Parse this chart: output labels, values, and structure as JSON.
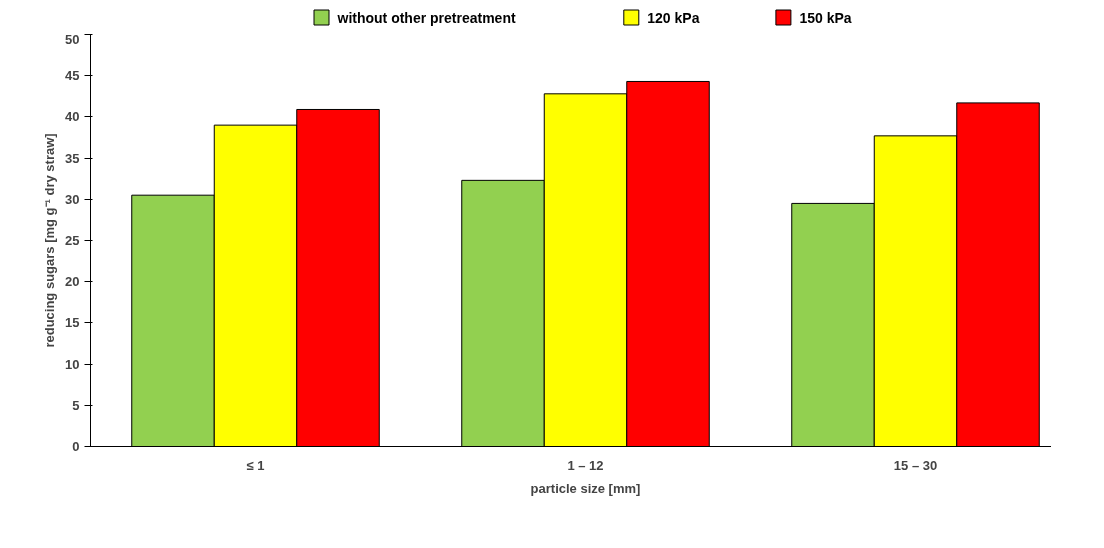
{
  "chart_data": {
    "type": "bar",
    "xlabel": "particle size [mm]",
    "ylabel": "reducing sugars [mg g⁻¹ dry straw]",
    "categories": [
      "≤ 1",
      "1 – 12",
      "15 – 30"
    ],
    "series": [
      {
        "name": "without other pretreatment",
        "color": "#92d050",
        "values": [
          30.5,
          32.3,
          29.5
        ]
      },
      {
        "name": "120 kPa",
        "color": "#ffff00",
        "values": [
          39.0,
          42.8,
          37.7
        ]
      },
      {
        "name": "150 kPa",
        "color": "#ff0000",
        "values": [
          40.9,
          44.3,
          41.7
        ]
      }
    ],
    "ylim": [
      0,
      50
    ],
    "yticks": [
      0,
      5,
      10,
      15,
      20,
      25,
      30,
      35,
      40,
      45,
      50
    ],
    "grid": false,
    "legend": "top"
  }
}
